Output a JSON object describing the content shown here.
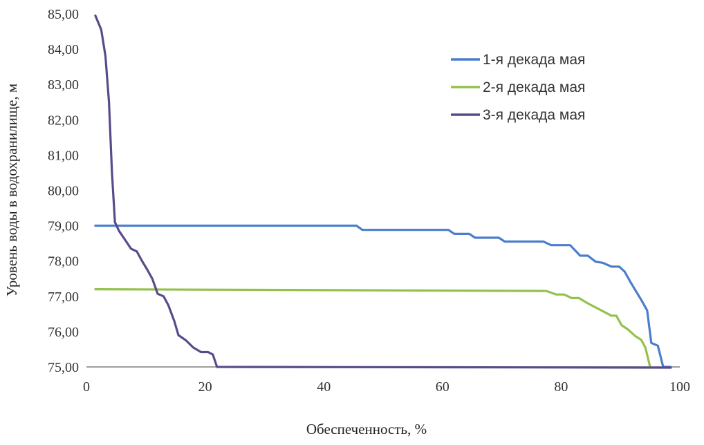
{
  "chart_data": {
    "type": "line",
    "title": "",
    "xlabel": "Обеспеченность, %",
    "ylabel": "Уровень воды в водохранилище, м",
    "xlim": [
      0,
      100
    ],
    "ylim": [
      75,
      85
    ],
    "x_ticks": [
      "0",
      "20",
      "40",
      "60",
      "80",
      "100"
    ],
    "y_ticks": [
      "75,00",
      "76,00",
      "77,00",
      "78,00",
      "79,00",
      "80,00",
      "81,00",
      "82,00",
      "83,00",
      "84,00",
      "85,00"
    ],
    "grid": false,
    "legend_position": "top-right",
    "series": [
      {
        "name": "1-я декада мая",
        "color": "#4a7dcc",
        "points": [
          [
            1.5,
            79.0
          ],
          [
            45.5,
            79.0
          ],
          [
            46.5,
            78.88
          ],
          [
            61,
            78.88
          ],
          [
            62,
            78.77
          ],
          [
            64.5,
            78.77
          ],
          [
            65.5,
            78.66
          ],
          [
            69.5,
            78.66
          ],
          [
            70.5,
            78.55
          ],
          [
            77,
            78.55
          ],
          [
            78.3,
            78.45
          ],
          [
            81.5,
            78.45
          ],
          [
            83.2,
            78.15
          ],
          [
            84.5,
            78.15
          ],
          [
            85.8,
            77.98
          ],
          [
            87,
            77.95
          ],
          [
            88.5,
            77.84
          ],
          [
            89.8,
            77.84
          ],
          [
            90.7,
            77.7
          ],
          [
            91.7,
            77.4
          ],
          [
            93.5,
            76.9
          ],
          [
            94.5,
            76.6
          ],
          [
            95.2,
            75.68
          ],
          [
            96.3,
            75.6
          ],
          [
            97.2,
            75.0
          ],
          [
            98.4,
            75.0
          ]
        ]
      },
      {
        "name": "2-я декада мая",
        "color": "#94c04c",
        "points": [
          [
            1.5,
            77.2
          ],
          [
            77.5,
            77.15
          ],
          [
            79.2,
            77.05
          ],
          [
            80.5,
            77.05
          ],
          [
            81.8,
            76.95
          ],
          [
            83,
            76.95
          ],
          [
            84.5,
            76.8
          ],
          [
            88.5,
            76.45
          ],
          [
            89.3,
            76.45
          ],
          [
            90.2,
            76.18
          ],
          [
            91.2,
            76.07
          ],
          [
            92.5,
            75.87
          ],
          [
            93.5,
            75.77
          ],
          [
            94.2,
            75.55
          ],
          [
            95,
            75.0
          ]
        ]
      },
      {
        "name": "3-я декада мая",
        "color": "#5a4a8a",
        "points": [
          [
            1.5,
            84.95
          ],
          [
            2.5,
            84.55
          ],
          [
            3.2,
            83.8
          ],
          [
            3.8,
            82.5
          ],
          [
            4.3,
            80.5
          ],
          [
            4.8,
            79.1
          ],
          [
            5.5,
            78.85
          ],
          [
            6.5,
            78.6
          ],
          [
            7.5,
            78.35
          ],
          [
            8.5,
            78.27
          ],
          [
            9.3,
            78.02
          ],
          [
            10.2,
            77.77
          ],
          [
            11.1,
            77.5
          ],
          [
            12,
            77.07
          ],
          [
            13,
            77.0
          ],
          [
            13.8,
            76.75
          ],
          [
            14.8,
            76.3
          ],
          [
            15.5,
            75.9
          ],
          [
            16.8,
            75.75
          ],
          [
            18,
            75.55
          ],
          [
            19.3,
            75.42
          ],
          [
            20.5,
            75.42
          ],
          [
            21.3,
            75.35
          ],
          [
            22,
            75.0
          ],
          [
            98.5,
            74.98
          ]
        ]
      }
    ]
  }
}
